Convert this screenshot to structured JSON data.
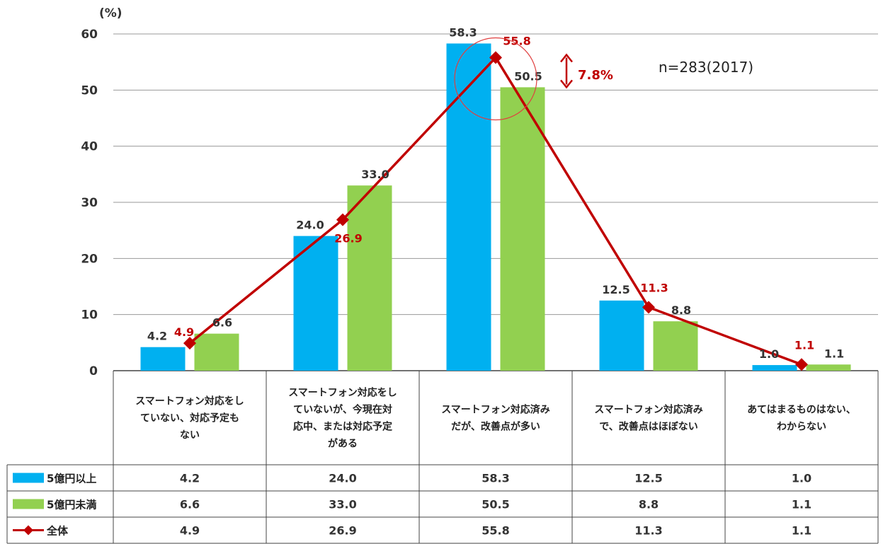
{
  "chart_data": {
    "type": "bar",
    "y_unit": "(%)",
    "ylim": [
      0,
      60
    ],
    "yticks": [
      0,
      10,
      20,
      30,
      40,
      50,
      60
    ],
    "grid": true,
    "categories": [
      [
        "スマートフォン対応をし",
        "ていない、対応予定も",
        "ない"
      ],
      [
        "スマートフォン対応をし",
        "ていないが、今現在対",
        "応中、または対応予定",
        "がある"
      ],
      [
        "スマートフォン対応済み",
        "だが、改善点が多い"
      ],
      [
        "スマートフォン対応済み",
        "で、改善点はほぼない"
      ],
      [
        "あてはまるものはない、",
        "わからない"
      ]
    ],
    "series": [
      {
        "name": "5億円以上",
        "type": "bar",
        "color": "#00b0f0",
        "values": [
          4.2,
          24.0,
          58.3,
          12.5,
          1.0
        ]
      },
      {
        "name": "5億円未満",
        "type": "bar",
        "color": "#92d050",
        "values": [
          6.6,
          33.0,
          50.5,
          8.8,
          1.1
        ]
      },
      {
        "name": "全体",
        "type": "line",
        "color": "#c00000",
        "values": [
          4.9,
          26.9,
          55.8,
          11.3,
          1.1
        ]
      }
    ],
    "data_labels": {
      "series0": [
        "4.2",
        "24.0",
        "58.3",
        "12.5",
        "1.0"
      ],
      "series1": [
        "6.6",
        "33.0",
        "50.5",
        "8.8",
        "1.1"
      ],
      "series2": [
        "4.9",
        "26.9",
        "55.8",
        "11.3",
        "1.1"
      ]
    },
    "table": {
      "rows": [
        [
          "4.2",
          "24.0",
          "58.3",
          "12.5",
          "1.0"
        ],
        [
          "6.6",
          "33.0",
          "50.5",
          "8.8",
          "1.1"
        ],
        [
          "4.9",
          "26.9",
          "55.8",
          "11.3",
          "1.1"
        ]
      ]
    },
    "annotations": {
      "sample": "n=283(2017)",
      "gap": "7.8%"
    }
  }
}
